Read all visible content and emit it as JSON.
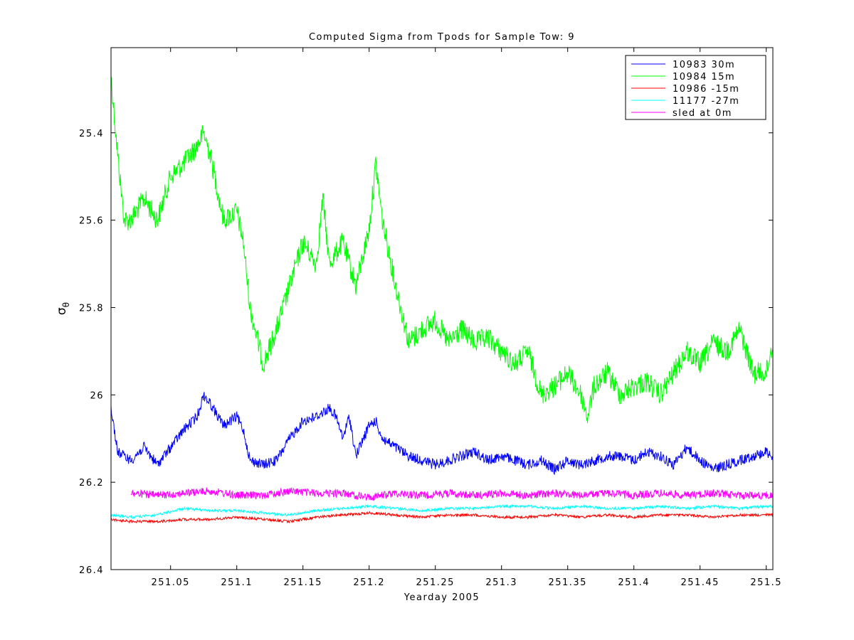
{
  "chart_data": {
    "type": "line",
    "title": "Computed Sigma from Tpods for Sample Tow: 9",
    "xlabel": "Yearday 2005",
    "ylabel": "σ",
    "ylabel_subscript": "θ",
    "xlim": [
      251.005,
      251.505
    ],
    "ylim": [
      26.4,
      25.205
    ],
    "y_reversed": true,
    "x_ticks": [
      "251.05",
      "251.1",
      "251.15",
      "251.2",
      "251.25",
      "251.3",
      "251.35",
      "251.4",
      "251.45",
      "251.5"
    ],
    "x_tick_values": [
      251.05,
      251.1,
      251.15,
      251.2,
      251.25,
      251.3,
      251.35,
      251.4,
      251.45,
      251.5
    ],
    "y_ticks": [
      "25.4",
      "25.6",
      "25.8",
      "26",
      "26.2",
      "26.4"
    ],
    "y_tick_values": [
      25.4,
      25.6,
      25.8,
      26.0,
      26.2,
      26.4
    ],
    "grid": false,
    "legend_position": "top-right",
    "series": [
      {
        "name": "10983 30m",
        "color": "#0000ff",
        "noise": 0.012,
        "x": [
          251.005,
          251.01,
          251.02,
          251.03,
          251.04,
          251.05,
          251.06,
          251.07,
          251.075,
          251.08,
          251.09,
          251.1,
          251.105,
          251.11,
          251.12,
          251.13,
          251.14,
          251.15,
          251.16,
          251.17,
          251.175,
          251.18,
          251.185,
          251.19,
          251.2,
          251.205,
          251.21,
          251.22,
          251.23,
          251.24,
          251.25,
          251.26,
          251.27,
          251.28,
          251.29,
          251.3,
          251.31,
          251.32,
          251.33,
          251.34,
          251.35,
          251.36,
          251.37,
          251.38,
          251.39,
          251.4,
          251.41,
          251.42,
          251.43,
          251.44,
          251.45,
          251.46,
          251.47,
          251.48,
          251.49,
          251.5,
          251.505
        ],
        "y": [
          26.03,
          26.13,
          26.15,
          26.12,
          26.16,
          26.12,
          26.08,
          26.05,
          26.0,
          26.02,
          26.07,
          26.05,
          26.08,
          26.15,
          26.16,
          26.15,
          26.1,
          26.06,
          26.05,
          26.03,
          26.05,
          26.1,
          26.05,
          26.14,
          26.07,
          26.06,
          26.1,
          26.12,
          26.14,
          26.15,
          26.16,
          26.15,
          26.14,
          26.13,
          26.15,
          26.14,
          26.15,
          26.16,
          26.15,
          26.17,
          26.15,
          26.16,
          26.15,
          26.14,
          26.14,
          26.15,
          26.13,
          26.14,
          26.16,
          26.12,
          26.15,
          26.17,
          26.16,
          26.15,
          26.14,
          26.13,
          26.14
        ]
      },
      {
        "name": "10984 15m",
        "color": "#00ff00",
        "noise": 0.025,
        "x": [
          251.005,
          251.01,
          251.015,
          251.02,
          251.03,
          251.04,
          251.05,
          251.06,
          251.07,
          251.075,
          251.08,
          251.09,
          251.1,
          251.105,
          251.11,
          251.12,
          251.13,
          251.14,
          251.15,
          251.16,
          251.165,
          251.17,
          251.18,
          251.19,
          251.2,
          251.205,
          251.21,
          251.22,
          251.23,
          251.24,
          251.25,
          251.26,
          251.27,
          251.28,
          251.29,
          251.3,
          251.31,
          251.32,
          251.33,
          251.34,
          251.35,
          251.36,
          251.365,
          251.37,
          251.38,
          251.39,
          251.4,
          251.41,
          251.42,
          251.43,
          251.44,
          251.45,
          251.46,
          251.47,
          251.48,
          251.49,
          251.5,
          251.505
        ],
        "y": [
          25.27,
          25.45,
          25.6,
          25.6,
          25.55,
          25.6,
          25.5,
          25.47,
          25.43,
          25.4,
          25.45,
          25.6,
          25.58,
          25.65,
          25.8,
          25.93,
          25.85,
          25.75,
          25.65,
          25.7,
          25.55,
          25.7,
          25.65,
          25.75,
          25.62,
          25.47,
          25.6,
          25.75,
          25.88,
          25.85,
          25.83,
          25.88,
          25.85,
          25.88,
          25.87,
          25.9,
          25.93,
          25.9,
          26.0,
          25.98,
          25.95,
          26.0,
          26.05,
          25.98,
          25.95,
          26.0,
          25.98,
          25.97,
          26.0,
          25.95,
          25.9,
          25.93,
          25.88,
          25.9,
          25.85,
          25.95,
          25.95,
          25.88
        ]
      },
      {
        "name": "10986 -15m",
        "color": "#ff0000",
        "noise": 0.003,
        "x": [
          251.005,
          251.02,
          251.04,
          251.06,
          251.08,
          251.1,
          251.12,
          251.14,
          251.16,
          251.18,
          251.2,
          251.22,
          251.24,
          251.26,
          251.28,
          251.3,
          251.32,
          251.34,
          251.36,
          251.38,
          251.4,
          251.42,
          251.44,
          251.46,
          251.48,
          251.5,
          251.505
        ],
        "y": [
          26.285,
          26.29,
          26.29,
          26.285,
          26.285,
          26.28,
          26.285,
          26.29,
          26.28,
          26.275,
          26.27,
          26.275,
          26.28,
          26.275,
          26.275,
          26.28,
          26.28,
          26.275,
          26.28,
          26.275,
          26.28,
          26.275,
          26.275,
          26.28,
          26.275,
          26.275,
          26.275
        ]
      },
      {
        "name": "11177 -27m",
        "color": "#00ffff",
        "noise": 0.003,
        "x": [
          251.005,
          251.02,
          251.04,
          251.06,
          251.08,
          251.1,
          251.12,
          251.14,
          251.16,
          251.18,
          251.2,
          251.22,
          251.24,
          251.26,
          251.28,
          251.3,
          251.32,
          251.34,
          251.36,
          251.38,
          251.4,
          251.42,
          251.44,
          251.46,
          251.48,
          251.5,
          251.505
        ],
        "y": [
          26.275,
          26.28,
          26.275,
          26.26,
          26.265,
          26.265,
          26.27,
          26.275,
          26.265,
          26.26,
          26.255,
          26.26,
          26.265,
          26.26,
          26.26,
          26.255,
          26.255,
          26.26,
          26.255,
          26.26,
          26.26,
          26.255,
          26.26,
          26.255,
          26.26,
          26.255,
          26.255
        ]
      },
      {
        "name": "sled at 0m",
        "color": "#ff00ff",
        "noise": 0.009,
        "x": [
          251.02,
          251.04,
          251.06,
          251.08,
          251.1,
          251.12,
          251.14,
          251.16,
          251.18,
          251.2,
          251.22,
          251.24,
          251.26,
          251.28,
          251.3,
          251.32,
          251.34,
          251.36,
          251.38,
          251.4,
          251.42,
          251.44,
          251.46,
          251.48,
          251.5,
          251.505
        ],
        "y": [
          26.225,
          26.23,
          26.225,
          26.22,
          26.23,
          26.23,
          26.22,
          26.225,
          26.225,
          26.235,
          26.225,
          26.23,
          26.225,
          26.23,
          26.225,
          26.23,
          26.225,
          26.23,
          26.225,
          26.23,
          26.225,
          26.23,
          26.225,
          26.23,
          26.23,
          26.23
        ]
      }
    ]
  }
}
